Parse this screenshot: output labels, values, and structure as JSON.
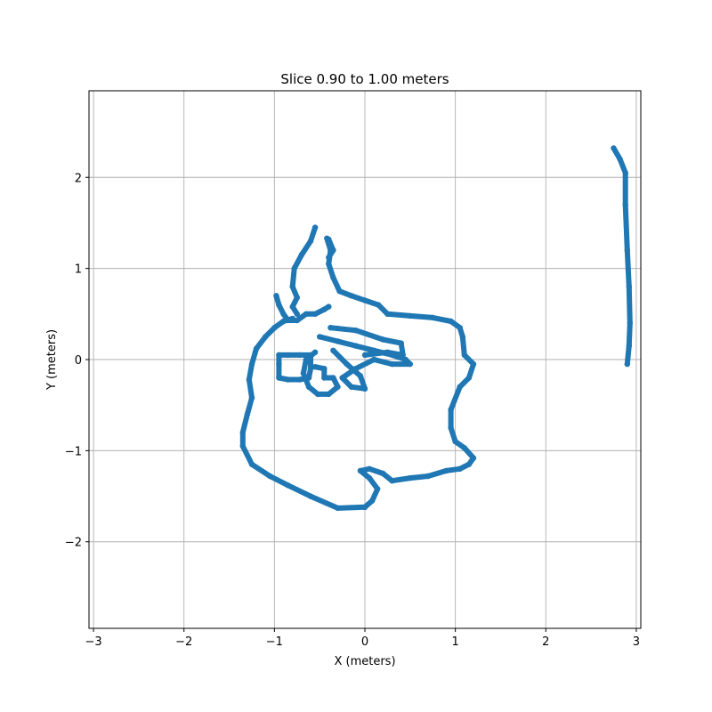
{
  "chart_data": {
    "type": "scatter",
    "title": "Slice 0.90 to 1.00 meters",
    "xlabel": "X (meters)",
    "ylabel": "Y (meters)",
    "xlim": [
      -3.05,
      3.05
    ],
    "ylim": [
      -2.95,
      2.95
    ],
    "xticks": [
      -3,
      -2,
      -1,
      0,
      1,
      2,
      3
    ],
    "yticks": [
      -2,
      -1,
      0,
      1,
      2
    ],
    "xtick_labels": [
      "−3",
      "−2",
      "−1",
      "0",
      "1",
      "2",
      "3"
    ],
    "ytick_labels": [
      "−2",
      "−1",
      "0",
      "1",
      "2"
    ],
    "grid": true,
    "color": "#1f77b4",
    "series": [
      {
        "points": [
          [
            0.0,
            -1.62
          ],
          [
            -0.3,
            -1.63
          ],
          [
            -0.6,
            -1.5
          ],
          [
            -0.85,
            -1.38
          ],
          [
            -1.05,
            -1.28
          ],
          [
            -1.25,
            -1.15
          ],
          [
            -1.35,
            -0.95
          ],
          [
            -1.35,
            -0.8
          ],
          [
            -1.3,
            -0.6
          ],
          [
            -1.25,
            -0.42
          ],
          [
            -1.28,
            -0.22
          ],
          [
            -1.25,
            -0.05
          ],
          [
            -1.2,
            0.12
          ],
          [
            -1.1,
            0.25
          ],
          [
            -1.0,
            0.35
          ],
          [
            -0.9,
            0.42
          ],
          [
            -0.8,
            0.45
          ]
        ]
      },
      {
        "points": [
          [
            0.0,
            -1.62
          ],
          [
            0.08,
            -1.55
          ],
          [
            0.14,
            -1.42
          ],
          [
            0.05,
            -1.3
          ],
          [
            -0.05,
            -1.22
          ],
          [
            0.05,
            -1.2
          ],
          [
            0.2,
            -1.25
          ],
          [
            0.3,
            -1.33
          ],
          [
            0.5,
            -1.3
          ],
          [
            0.7,
            -1.28
          ],
          [
            0.9,
            -1.22
          ],
          [
            1.05,
            -1.2
          ],
          [
            1.15,
            -1.15
          ],
          [
            1.2,
            -1.08
          ],
          [
            1.1,
            -0.97
          ],
          [
            1.0,
            -0.9
          ],
          [
            0.95,
            -0.75
          ],
          [
            0.95,
            -0.55
          ],
          [
            1.05,
            -0.3
          ],
          [
            1.15,
            -0.2
          ],
          [
            1.2,
            -0.05
          ],
          [
            1.1,
            0.05
          ],
          [
            1.08,
            0.25
          ],
          [
            1.05,
            0.35
          ],
          [
            0.95,
            0.42
          ],
          [
            0.75,
            0.46
          ],
          [
            0.5,
            0.48
          ],
          [
            0.25,
            0.5
          ],
          [
            0.15,
            0.6
          ],
          [
            0.0,
            0.65
          ],
          [
            -0.15,
            0.7
          ],
          [
            -0.28,
            0.75
          ],
          [
            -0.35,
            0.9
          ],
          [
            -0.4,
            1.05
          ],
          [
            -0.38,
            1.2
          ],
          [
            -0.42,
            1.33
          ]
        ]
      },
      {
        "points": [
          [
            -0.75,
            0.5
          ],
          [
            -0.8,
            0.58
          ],
          [
            -0.75,
            0.68
          ],
          [
            -0.8,
            0.8
          ],
          [
            -0.78,
            1.0
          ],
          [
            -0.7,
            1.15
          ],
          [
            -0.6,
            1.3
          ],
          [
            -0.55,
            1.45
          ]
        ]
      },
      {
        "points": [
          [
            -0.98,
            0.7
          ],
          [
            -0.95,
            0.6
          ],
          [
            -0.9,
            0.5
          ],
          [
            -0.85,
            0.43
          ],
          [
            -0.75,
            0.43
          ],
          [
            -0.65,
            0.5
          ],
          [
            -0.55,
            0.5
          ],
          [
            -0.45,
            0.55
          ],
          [
            -0.4,
            0.58
          ]
        ]
      },
      {
        "points": [
          [
            -0.95,
            0.05
          ],
          [
            -0.95,
            -0.05
          ],
          [
            -0.95,
            -0.2
          ],
          [
            -0.85,
            -0.22
          ],
          [
            -0.72,
            -0.22
          ],
          [
            -0.62,
            -0.2
          ],
          [
            -0.6,
            -0.1
          ],
          [
            -0.6,
            0.05
          ],
          [
            -0.72,
            0.05
          ],
          [
            -0.85,
            0.05
          ],
          [
            -0.95,
            0.05
          ]
        ]
      },
      {
        "points": [
          [
            -0.55,
            0.08
          ],
          [
            -0.65,
            0.0
          ],
          [
            -0.68,
            -0.15
          ],
          [
            -0.62,
            -0.3
          ],
          [
            -0.52,
            -0.38
          ],
          [
            -0.4,
            -0.38
          ],
          [
            -0.3,
            -0.3
          ],
          [
            -0.35,
            -0.2
          ],
          [
            -0.45,
            -0.2
          ],
          [
            -0.45,
            -0.1
          ],
          [
            -0.55,
            -0.08
          ]
        ]
      },
      {
        "points": [
          [
            -0.5,
            0.25
          ],
          [
            -0.3,
            0.2
          ],
          [
            -0.1,
            0.15
          ],
          [
            0.1,
            0.1
          ],
          [
            0.3,
            0.05
          ],
          [
            0.45,
            0.0
          ],
          [
            0.5,
            -0.05
          ],
          [
            0.3,
            -0.05
          ],
          [
            0.1,
            0.0
          ],
          [
            -0.1,
            -0.1
          ],
          [
            -0.25,
            -0.2
          ],
          [
            -0.15,
            -0.3
          ],
          [
            0.0,
            -0.32
          ],
          [
            -0.05,
            -0.18
          ],
          [
            -0.2,
            -0.05
          ],
          [
            -0.35,
            0.1
          ]
        ]
      },
      {
        "points": [
          [
            -0.38,
            0.35
          ],
          [
            -0.1,
            0.32
          ],
          [
            0.2,
            0.22
          ],
          [
            0.4,
            0.18
          ],
          [
            0.42,
            0.05
          ],
          [
            0.25,
            0.08
          ],
          [
            0.0,
            0.05
          ]
        ]
      },
      {
        "points": [
          [
            -0.4,
            1.32
          ],
          [
            -0.35,
            1.2
          ],
          [
            -0.4,
            1.12
          ]
        ]
      },
      {
        "points": [
          [
            2.75,
            2.32
          ],
          [
            2.82,
            2.2
          ],
          [
            2.88,
            2.05
          ],
          [
            2.88,
            1.7
          ],
          [
            2.9,
            1.2
          ],
          [
            2.92,
            0.8
          ],
          [
            2.93,
            0.4
          ],
          [
            2.92,
            0.15
          ],
          [
            2.9,
            -0.05
          ]
        ]
      }
    ]
  }
}
